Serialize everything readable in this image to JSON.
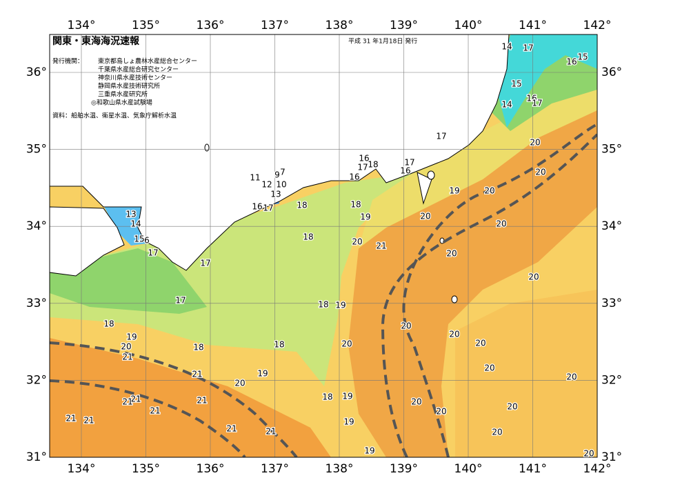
{
  "header": {
    "title": "関東・東海海況速報",
    "date": "平成 31 年1月18日 発行",
    "issuer_heading": "発行機関：",
    "issuers": [
      "東京都島しょ農林水産総合センター",
      "千葉県水産総合研究センター",
      "神奈川県水産技術センター",
      "静岡県水産技術研究所",
      "三重県水産研究所",
      "◎和歌山県水産試験場"
    ],
    "source": "資料：船舶水温、衛星水温、気象庁解析水温"
  },
  "map": {
    "lon_ticks": [
      {
        "value": 134,
        "label": "134°"
      },
      {
        "value": 135,
        "label": "135°"
      },
      {
        "value": 136,
        "label": "136°"
      },
      {
        "value": 137,
        "label": "137°"
      },
      {
        "value": 138,
        "label": "138°"
      },
      {
        "value": 139,
        "label": "139°"
      },
      {
        "value": 140,
        "label": "140°"
      },
      {
        "value": 141,
        "label": "141°"
      },
      {
        "value": 142,
        "label": "142°"
      }
    ],
    "lat_ticks": [
      {
        "value": 31,
        "label": "31°"
      },
      {
        "value": 32,
        "label": "32°"
      },
      {
        "value": 33,
        "label": "33°"
      },
      {
        "value": 34,
        "label": "34°"
      },
      {
        "value": 35,
        "label": "35°"
      },
      {
        "value": 36,
        "label": "36°"
      }
    ],
    "contour_labels": [
      14,
      17,
      15,
      16,
      15,
      16,
      17,
      14,
      17,
      20,
      20,
      16,
      18,
      17,
      16,
      17,
      16,
      9,
      7,
      11,
      12,
      10,
      13,
      16,
      17,
      18,
      18,
      19,
      20,
      19,
      20,
      20,
      13,
      14,
      15,
      6,
      17,
      18,
      20,
      21,
      20,
      17,
      20,
      17,
      18,
      19,
      18,
      20,
      20,
      19,
      20,
      20,
      18,
      18,
      20,
      21,
      20,
      19,
      21,
      20,
      20,
      18,
      19,
      21,
      21,
      21,
      20,
      20,
      21,
      20,
      21,
      21,
      19,
      21,
      21,
      20,
      19,
      20
    ]
  }
}
